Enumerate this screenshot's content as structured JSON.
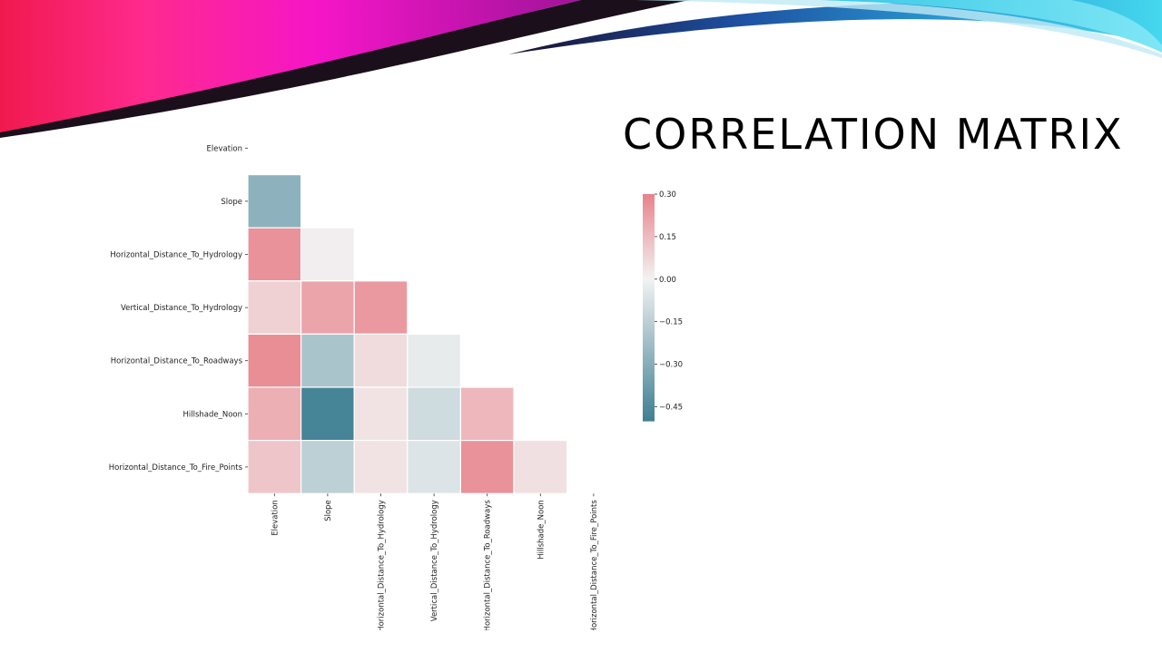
{
  "slide": {
    "title": "Correlation Matrix"
  },
  "chart_data": {
    "type": "heatmap",
    "title": "",
    "variables": [
      "Elevation",
      "Slope",
      "Horizontal_Distance_To_Hydrology",
      "Vertical_Distance_To_Hydrology",
      "Horizontal_Distance_To_Roadways",
      "Hillshade_Noon",
      "Horizontal_Distance_To_Fire_Points"
    ],
    "mask": "upper-triangle-and-diagonal",
    "values": [
      [
        null,
        null,
        null,
        null,
        null,
        null,
        null
      ],
      [
        -0.28,
        null,
        null,
        null,
        null,
        null,
        null
      ],
      [
        0.26,
        0.01,
        null,
        null,
        null,
        null,
        null
      ],
      [
        0.09,
        0.21,
        0.24,
        null,
        null,
        null,
        null
      ],
      [
        0.27,
        -0.2,
        0.06,
        -0.03,
        null,
        null,
        null
      ],
      [
        0.18,
        -0.48,
        0.04,
        -0.1,
        0.16,
        null,
        null
      ],
      [
        0.12,
        -0.15,
        0.04,
        -0.06,
        0.26,
        0.05,
        null
      ]
    ],
    "colorbar": {
      "min": -0.5,
      "max": 0.3,
      "ticks": [
        0.3,
        0.15,
        0.0,
        -0.15,
        -0.3,
        -0.45
      ],
      "tick_labels": [
        "0.30",
        "0.15",
        "0.00",
        "−0.15",
        "−0.30",
        "−0.45"
      ],
      "colormap": "diverging",
      "color_low": "#3f7f93",
      "color_mid": "#f2f2f2",
      "color_high": "#e8838b"
    }
  },
  "colors": {
    "banner_pink": "#ff1fbd",
    "banner_red": "#f0194e",
    "banner_dark": "#1a0f1a",
    "banner_blue": "#1d7db8",
    "banner_cyan": "#34d0ea",
    "grid_line": "#ffffff"
  }
}
